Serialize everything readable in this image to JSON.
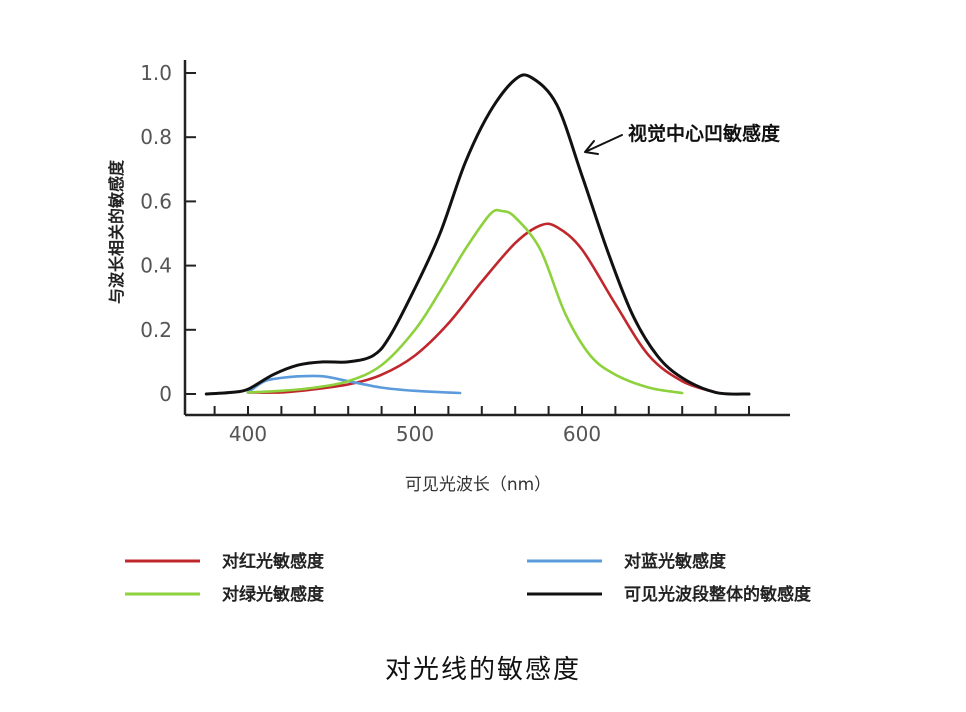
{
  "chart_data": {
    "type": "line",
    "ylabel": "与波长相关的敏感度",
    "xlabel": "可见光波长（nm）",
    "xlim": [
      370,
      700
    ],
    "ylim": [
      0,
      1.0
    ],
    "x_ticks": [
      400,
      500,
      600
    ],
    "y_ticks": [
      {
        "value": 0,
        "label": "0"
      },
      {
        "value": 0.2,
        "label": "0.2"
      },
      {
        "value": 0.4,
        "label": "0.4"
      },
      {
        "value": 0.6,
        "label": "0.6"
      },
      {
        "value": 0.8,
        "label": "0.8"
      },
      {
        "value": 1.0,
        "label": "1.0"
      }
    ],
    "grid": false,
    "legend_position": "bottom",
    "annotation": {
      "text": "视觉中心凹敏感度",
      "x": 570,
      "y": 0.75
    },
    "series": [
      {
        "name": "对红光敏感度",
        "color": "#c0272d",
        "points": [
          [
            400,
            0.005
          ],
          [
            420,
            0.005
          ],
          [
            440,
            0.015
          ],
          [
            460,
            0.03
          ],
          [
            480,
            0.06
          ],
          [
            500,
            0.12
          ],
          [
            520,
            0.22
          ],
          [
            540,
            0.35
          ],
          [
            560,
            0.47
          ],
          [
            575,
            0.525
          ],
          [
            585,
            0.52
          ],
          [
            600,
            0.45
          ],
          [
            620,
            0.28
          ],
          [
            640,
            0.12
          ],
          [
            660,
            0.04
          ],
          [
            680,
            0.005
          ]
        ]
      },
      {
        "name": "对蓝光敏感度",
        "color": "#5b9bdc",
        "points": [
          [
            400,
            0.005
          ],
          [
            410,
            0.04
          ],
          [
            420,
            0.05
          ],
          [
            430,
            0.055
          ],
          [
            445,
            0.055
          ],
          [
            460,
            0.04
          ],
          [
            480,
            0.02
          ],
          [
            500,
            0.01
          ],
          [
            527,
            0.003
          ]
        ]
      },
      {
        "name": "对绿光敏感度",
        "color": "#8dd13d",
        "points": [
          [
            400,
            0.005
          ],
          [
            420,
            0.01
          ],
          [
            440,
            0.02
          ],
          [
            460,
            0.04
          ],
          [
            480,
            0.09
          ],
          [
            500,
            0.2
          ],
          [
            515,
            0.32
          ],
          [
            530,
            0.45
          ],
          [
            545,
            0.56
          ],
          [
            552,
            0.57
          ],
          [
            560,
            0.55
          ],
          [
            575,
            0.45
          ],
          [
            590,
            0.25
          ],
          [
            605,
            0.12
          ],
          [
            620,
            0.06
          ],
          [
            640,
            0.02
          ],
          [
            660,
            0.003
          ]
        ]
      },
      {
        "name": "可见光波段整体的敏感度",
        "color": "#111111",
        "points": [
          [
            375,
            0.0
          ],
          [
            390,
            0.005
          ],
          [
            400,
            0.015
          ],
          [
            415,
            0.06
          ],
          [
            430,
            0.09
          ],
          [
            445,
            0.1
          ],
          [
            460,
            0.1
          ],
          [
            475,
            0.12
          ],
          [
            485,
            0.18
          ],
          [
            500,
            0.33
          ],
          [
            515,
            0.5
          ],
          [
            530,
            0.72
          ],
          [
            545,
            0.88
          ],
          [
            560,
            0.98
          ],
          [
            570,
            0.985
          ],
          [
            585,
            0.9
          ],
          [
            600,
            0.68
          ],
          [
            615,
            0.45
          ],
          [
            630,
            0.25
          ],
          [
            645,
            0.12
          ],
          [
            660,
            0.05
          ],
          [
            680,
            0.005
          ],
          [
            700,
            0.0
          ]
        ]
      }
    ]
  },
  "caption": "对光线的敏感度"
}
